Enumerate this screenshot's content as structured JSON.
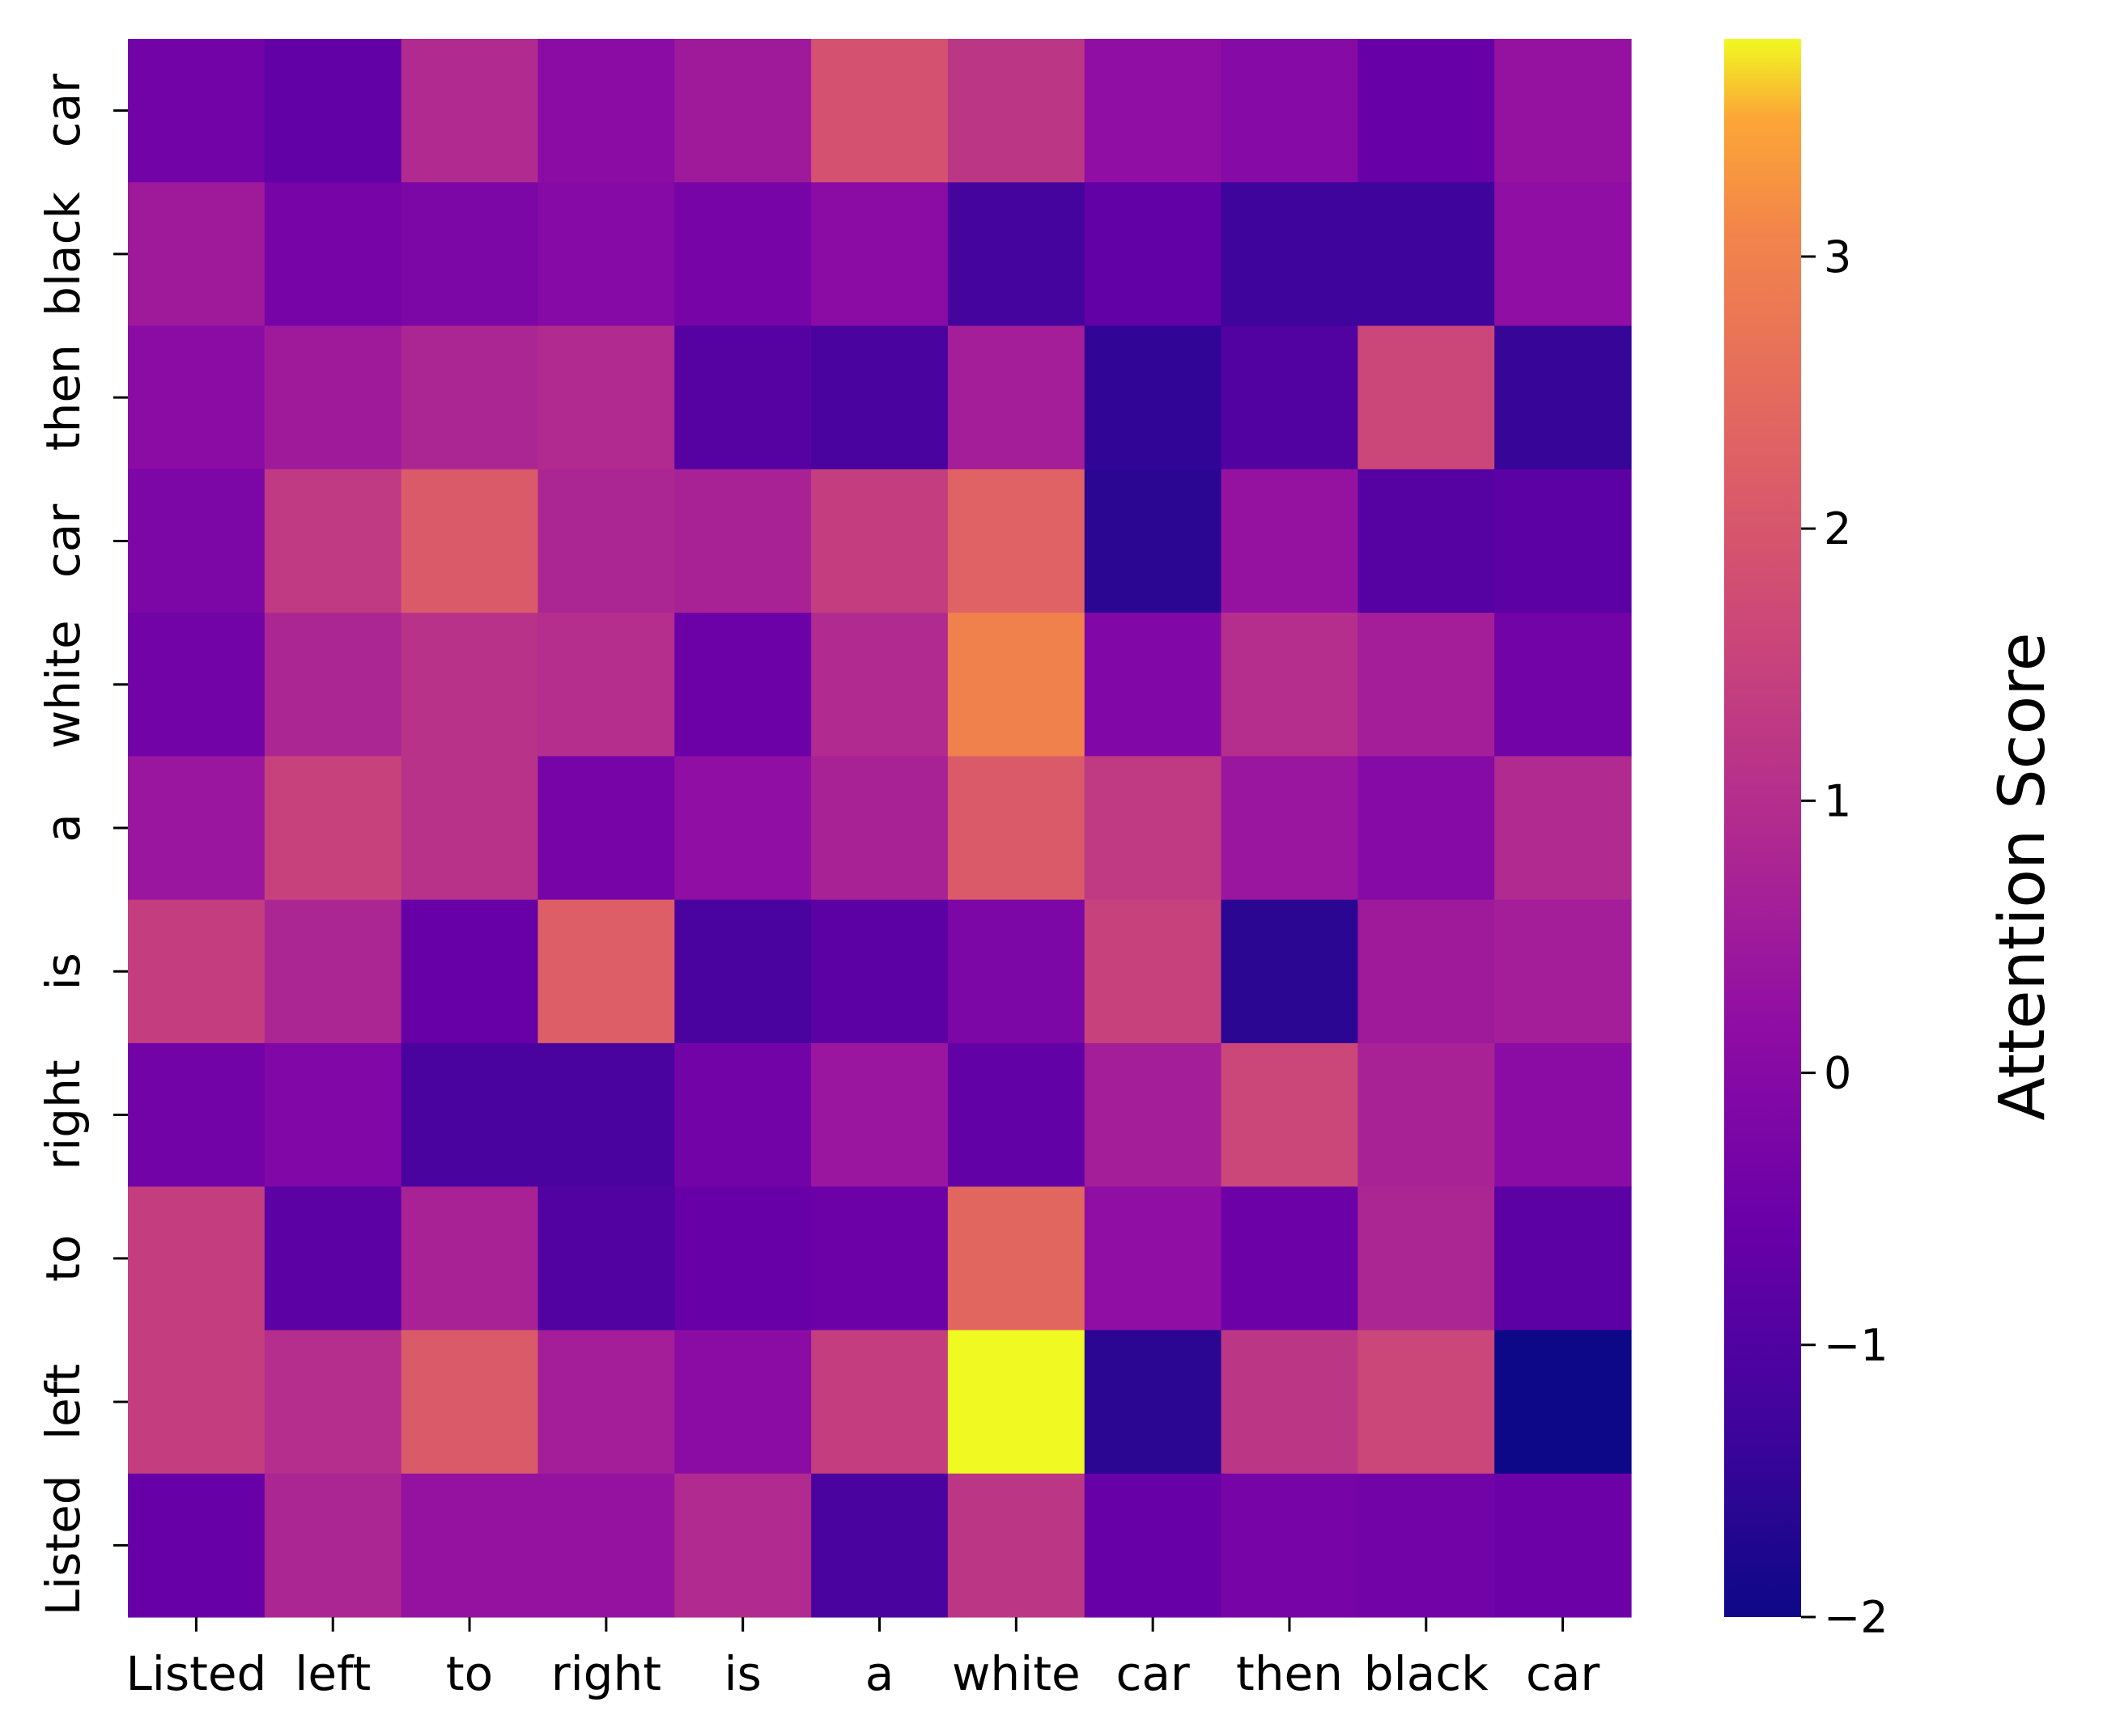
{
  "chart_data": {
    "type": "heatmap",
    "colormap": "plasma",
    "x_labels": [
      "Listed",
      "left",
      "to",
      "right",
      "is",
      "a",
      "white",
      "car",
      "then",
      "black",
      "car"
    ],
    "y_labels_top_to_bottom": [
      "car",
      "black",
      "then",
      "car",
      "white",
      "a",
      "is",
      "right",
      "to",
      "left",
      "Listed"
    ],
    "values_top_to_bottom": [
      [
        -0.4,
        -0.7,
        0.9,
        0.1,
        0.5,
        1.9,
        1.2,
        0.2,
        0.0,
        -0.6,
        0.3
      ],
      [
        0.5,
        -0.3,
        -0.2,
        0.0,
        -0.3,
        0.1,
        -1.2,
        -0.7,
        -1.3,
        -1.3,
        0.2
      ],
      [
        0.1,
        0.5,
        0.8,
        0.9,
        -0.9,
        -1.1,
        0.6,
        -1.5,
        -1.0,
        1.6,
        -1.4
      ],
      [
        -0.2,
        1.3,
        2.1,
        0.8,
        0.7,
        1.4,
        2.3,
        -1.6,
        0.3,
        -0.9,
        -0.8
      ],
      [
        -0.4,
        0.8,
        1.1,
        1.0,
        -0.5,
        0.9,
        3.0,
        -0.1,
        1.0,
        0.6,
        -0.4
      ],
      [
        0.4,
        1.5,
        1.1,
        -0.3,
        0.2,
        0.7,
        2.1,
        1.3,
        0.4,
        0.0,
        0.9
      ],
      [
        1.4,
        0.8,
        -0.6,
        2.2,
        -1.1,
        -0.8,
        -0.2,
        1.5,
        -1.6,
        0.5,
        0.6
      ],
      [
        -0.4,
        -0.1,
        -1.1,
        -1.1,
        -0.4,
        0.4,
        -0.7,
        0.6,
        1.6,
        0.7,
        0.1
      ],
      [
        1.4,
        -0.8,
        0.7,
        -1.0,
        -0.6,
        -0.5,
        2.4,
        0.2,
        -0.5,
        0.8,
        -0.8
      ],
      [
        1.4,
        1.0,
        2.1,
        0.6,
        0.1,
        1.4,
        3.8,
        -1.6,
        1.2,
        1.6,
        -2.0
      ],
      [
        -0.6,
        0.8,
        0.3,
        0.3,
        0.9,
        -1.1,
        1.2,
        -0.6,
        -0.3,
        -0.4,
        -0.5
      ]
    ],
    "colorbar": {
      "label": "Attention Score",
      "min": -2,
      "max": 3.8,
      "ticks": [
        3,
        2,
        1,
        0,
        -1,
        -2
      ],
      "tick_labels": [
        "3",
        "2",
        "1",
        "0",
        "−1",
        "−2"
      ]
    }
  }
}
